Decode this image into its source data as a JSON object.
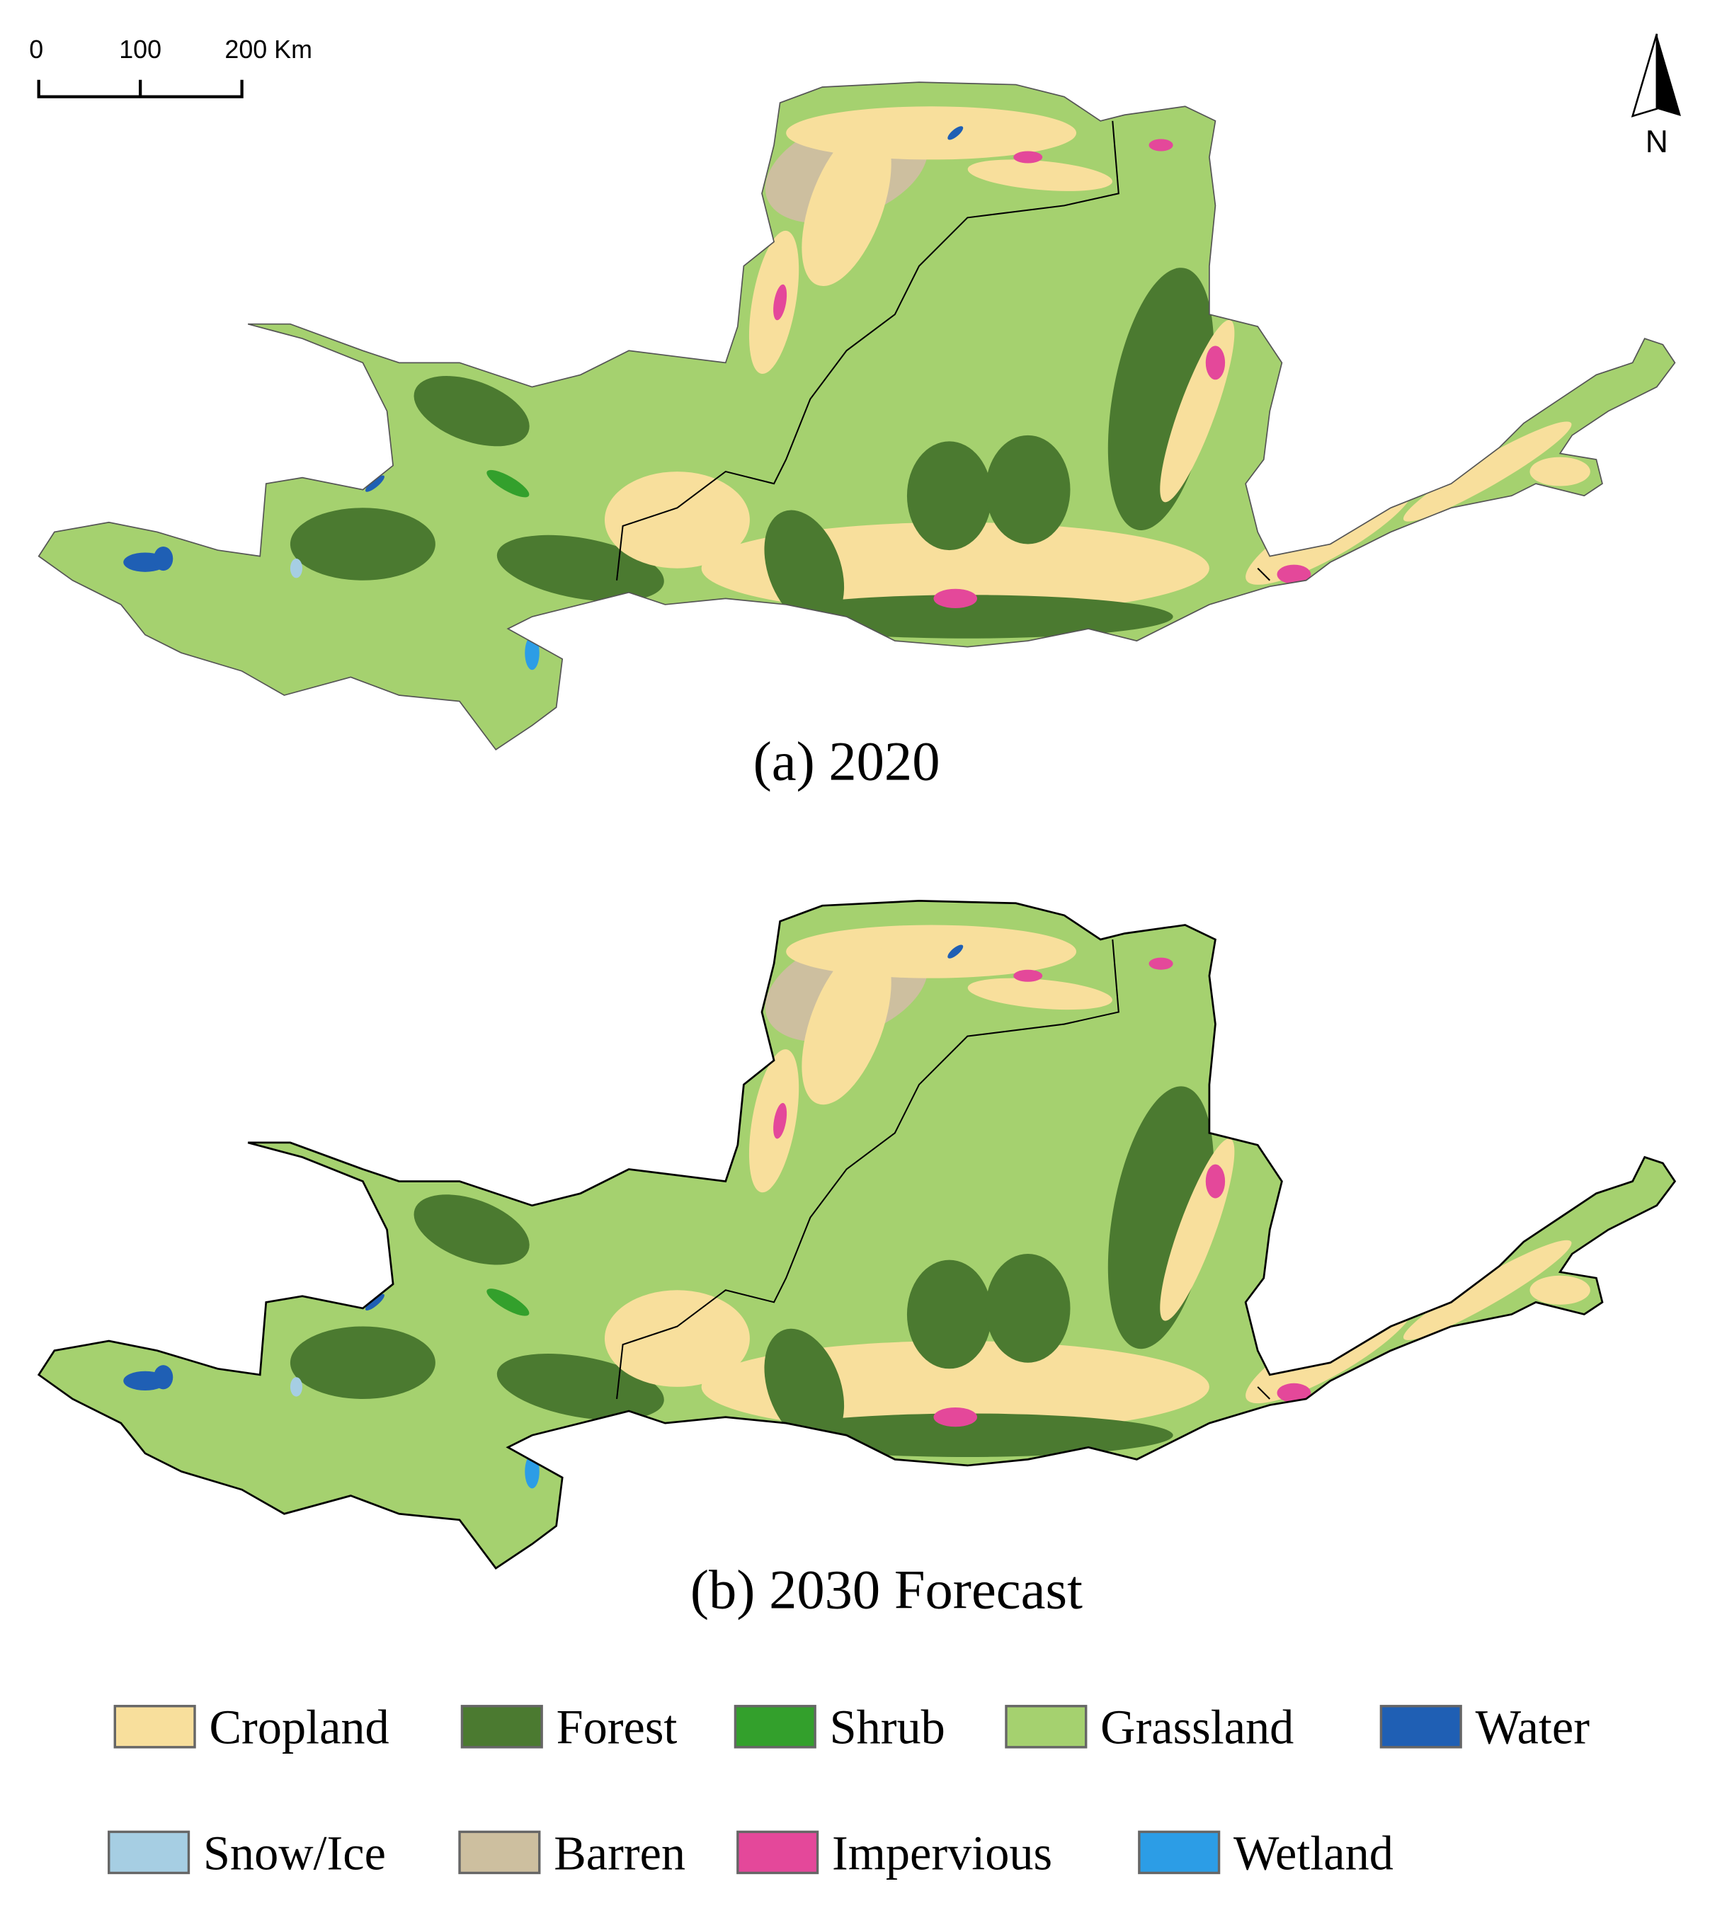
{
  "scale_bar": {
    "labels": [
      "0",
      "100",
      "200 Km"
    ]
  },
  "north_label": "N",
  "maps": [
    {
      "caption": "(a) 2020"
    },
    {
      "caption": "(b) 2030 Forecast"
    }
  ],
  "legend": [
    {
      "label": "Cropland",
      "color": "#f8df9c"
    },
    {
      "label": "Forest",
      "color": "#4b7a30"
    },
    {
      "label": "Shrub",
      "color": "#33a02c"
    },
    {
      "label": "Grassland",
      "color": "#a5d16f"
    },
    {
      "label": "Water",
      "color": "#1f5fb4"
    },
    {
      "label": "Snow/Ice",
      "color": "#a6cee3"
    },
    {
      "label": "Barren",
      "color": "#cdbf9f"
    },
    {
      "label": "Impervious",
      "color": "#e4489a"
    },
    {
      "label": "Wetland",
      "color": "#2c9de6"
    }
  ]
}
